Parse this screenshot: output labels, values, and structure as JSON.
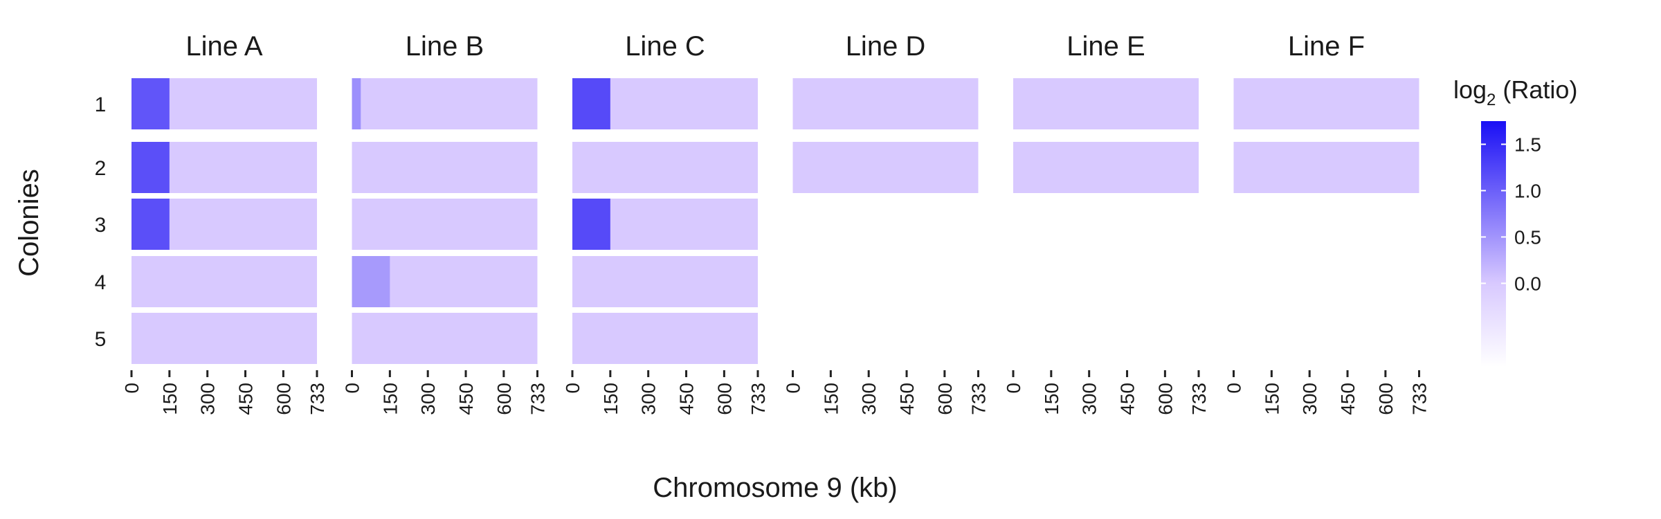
{
  "chart_data": {
    "type": "heatmap",
    "title": "",
    "xlabel": "Chromosome 9 (kb)",
    "ylabel": "Colonies",
    "xlim": [
      0,
      733
    ],
    "x_ticks": [
      "0",
      "150",
      "300",
      "450",
      "600",
      "733"
    ],
    "x_tick_values": [
      0,
      150,
      300,
      450,
      600,
      733
    ],
    "rows": [
      "1",
      "2",
      "3",
      "4",
      "5"
    ],
    "panels": [
      "Line A",
      "Line B",
      "Line C",
      "Line D",
      "Line E",
      "Line F"
    ],
    "colonies": [
      {
        "panel": "Line A",
        "colony": "1",
        "baseline": 0.0,
        "segments": [
          {
            "start": 0,
            "end": 150,
            "value": 1.1
          }
        ]
      },
      {
        "panel": "Line A",
        "colony": "2",
        "baseline": 0.0,
        "segments": [
          {
            "start": 0,
            "end": 150,
            "value": 1.15
          }
        ]
      },
      {
        "panel": "Line A",
        "colony": "3",
        "baseline": 0.0,
        "segments": [
          {
            "start": 0,
            "end": 150,
            "value": 1.15
          }
        ]
      },
      {
        "panel": "Line A",
        "colony": "4",
        "baseline": 0.0,
        "segments": []
      },
      {
        "panel": "Line A",
        "colony": "5",
        "baseline": 0.0,
        "segments": []
      },
      {
        "panel": "Line B",
        "colony": "1",
        "baseline": 0.0,
        "segments": [
          {
            "start": 0,
            "end": 35,
            "value": 0.55
          }
        ]
      },
      {
        "panel": "Line B",
        "colony": "2",
        "baseline": 0.0,
        "segments": []
      },
      {
        "panel": "Line B",
        "colony": "3",
        "baseline": 0.0,
        "segments": []
      },
      {
        "panel": "Line B",
        "colony": "4",
        "baseline": 0.0,
        "segments": [
          {
            "start": 0,
            "end": 150,
            "value": 0.45
          }
        ]
      },
      {
        "panel": "Line B",
        "colony": "5",
        "baseline": 0.0,
        "segments": []
      },
      {
        "panel": "Line C",
        "colony": "1",
        "baseline": 0.0,
        "segments": [
          {
            "start": 0,
            "end": 150,
            "value": 1.2
          }
        ]
      },
      {
        "panel": "Line C",
        "colony": "2",
        "baseline": 0.0,
        "segments": []
      },
      {
        "panel": "Line C",
        "colony": "3",
        "baseline": 0.0,
        "segments": [
          {
            "start": 0,
            "end": 150,
            "value": 1.2
          }
        ]
      },
      {
        "panel": "Line C",
        "colony": "4",
        "baseline": 0.0,
        "segments": []
      },
      {
        "panel": "Line C",
        "colony": "5",
        "baseline": 0.0,
        "segments": []
      },
      {
        "panel": "Line D",
        "colony": "1",
        "baseline": 0.0,
        "segments": []
      },
      {
        "panel": "Line D",
        "colony": "2",
        "baseline": 0.0,
        "segments": []
      },
      {
        "panel": "Line E",
        "colony": "1",
        "baseline": 0.0,
        "segments": []
      },
      {
        "panel": "Line E",
        "colony": "2",
        "baseline": 0.0,
        "segments": []
      },
      {
        "panel": "Line F",
        "colony": "1",
        "baseline": 0.0,
        "segments": []
      },
      {
        "panel": "Line F",
        "colony": "2",
        "baseline": 0.0,
        "segments": []
      }
    ],
    "legend": {
      "title_main": "log",
      "title_sub": "2",
      "title_rest": " (Ratio)",
      "placement": "right",
      "range": [
        -0.9,
        1.75
      ],
      "ticks": [
        "0.0",
        "0.5",
        "1.0",
        "1.5"
      ],
      "tick_values": [
        0.0,
        0.5,
        1.0,
        1.5
      ]
    },
    "colors": {
      "low": "#ffffff",
      "high": "#1a10f5"
    },
    "grid": false
  }
}
